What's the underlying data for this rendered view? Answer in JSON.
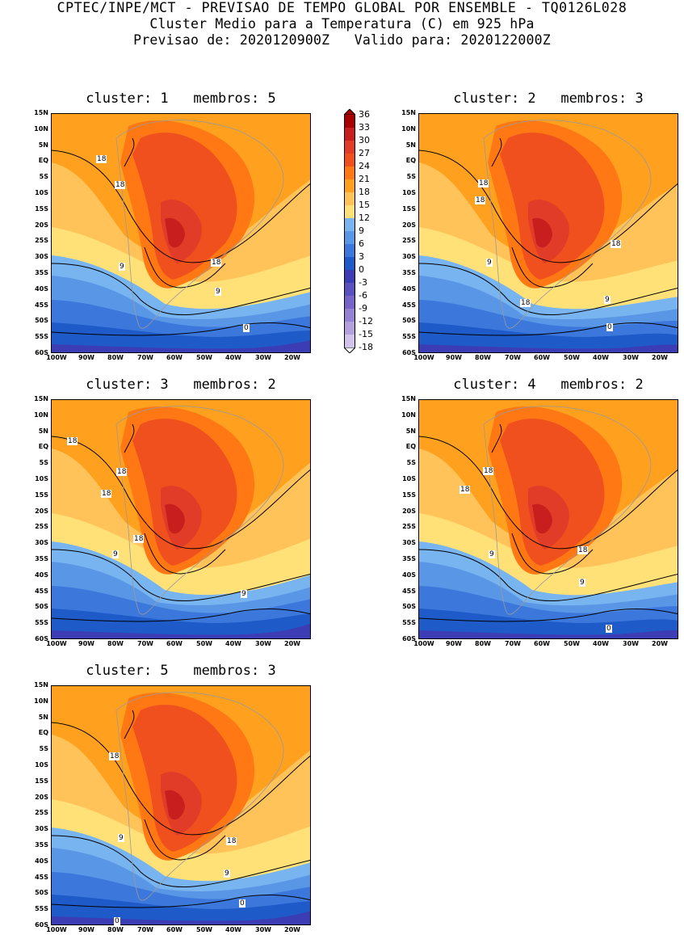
{
  "header": {
    "line1": "CPTEC/INPE/MCT - PREVISAO DE TEMPO GLOBAL POR ENSEMBLE - TQ0126L028",
    "line2": "Cluster Medio para a Temperatura (C) em 925 hPa",
    "line3": "Previsao de: 2020120900Z   Valido para: 2020122000Z"
  },
  "axes": {
    "lat_labels": [
      "15N",
      "10N",
      "5N",
      "EQ",
      "5S",
      "10S",
      "15S",
      "20S",
      "25S",
      "30S",
      "35S",
      "40S",
      "45S",
      "50S",
      "55S",
      "60S"
    ],
    "lon_labels": [
      "100W",
      "90W",
      "80W",
      "70W",
      "60W",
      "50W",
      "40W",
      "30W",
      "20W"
    ]
  },
  "colorbar": {
    "labels": [
      "36",
      "33",
      "30",
      "27",
      "24",
      "21",
      "18",
      "15",
      "12",
      "9",
      "6",
      "3",
      "0",
      "-3",
      "-6",
      "-9",
      "-12",
      "-15",
      "-18"
    ],
    "colors": [
      "#a80000",
      "#c81e1e",
      "#e03c28",
      "#f0501e",
      "#ff7814",
      "#ffa01e",
      "#ffc35a",
      "#ffe178",
      "#78b4f0",
      "#5a96e6",
      "#3c78dc",
      "#1e5ac8",
      "#3c3cb4",
      "#5a50be",
      "#7864c8",
      "#9682d2",
      "#b4a0dc",
      "#d2c3eb"
    ]
  },
  "panels": [
    {
      "title": "cluster: 1   membros: 5",
      "contour_labels": [
        "18",
        "18",
        "9",
        "18",
        "9",
        "0"
      ]
    },
    {
      "title": "cluster: 2   membros: 3",
      "contour_labels": [
        "18",
        "18",
        "18",
        "9",
        "18",
        "9",
        "0"
      ]
    },
    {
      "title": "cluster: 3   membros: 2",
      "contour_labels": [
        "18",
        "18",
        "18",
        "18",
        "9",
        "9"
      ]
    },
    {
      "title": "cluster: 4   membros: 2",
      "contour_labels": [
        "18",
        "18",
        "18",
        "9",
        "9",
        "0"
      ]
    },
    {
      "title": "cluster: 5   membros: 3",
      "contour_labels": [
        "18",
        "9",
        "18",
        "9",
        "0",
        "0"
      ]
    }
  ]
}
